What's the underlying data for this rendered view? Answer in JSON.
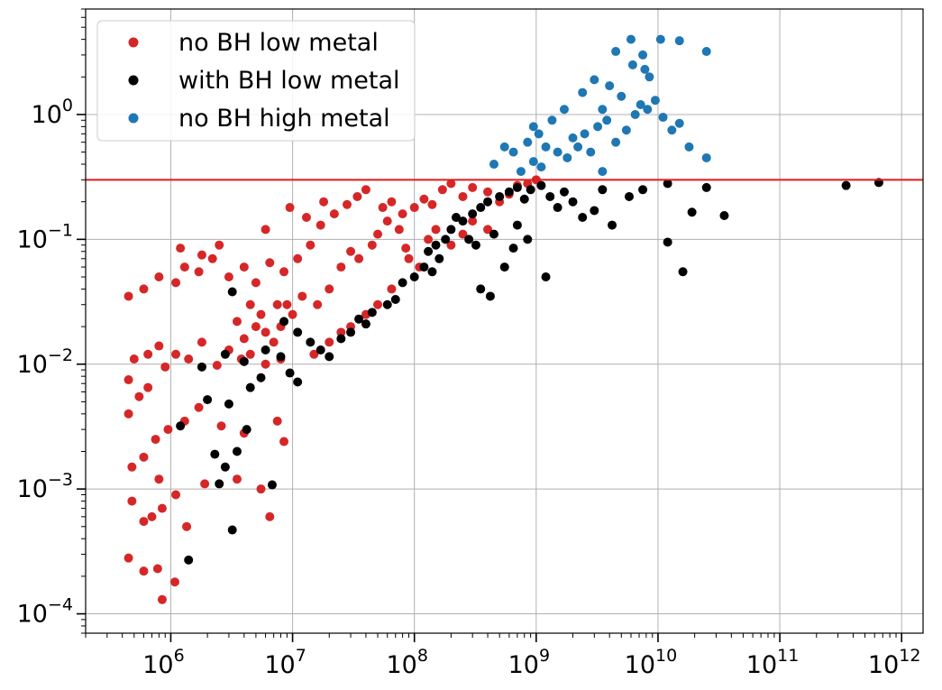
{
  "chart_data": {
    "type": "scatter",
    "title": "",
    "xlabel": "",
    "ylabel": "",
    "xscale": "log",
    "yscale": "log",
    "xlim": [
      200000,
      1500000000000.0
    ],
    "ylim": [
      7e-05,
      7
    ],
    "grid": true,
    "legend_position": "top-left",
    "x_ticks": [
      {
        "value": 1000000.0,
        "base": "10",
        "exp": "6"
      },
      {
        "value": 10000000.0,
        "base": "10",
        "exp": "7"
      },
      {
        "value": 100000000.0,
        "base": "10",
        "exp": "8"
      },
      {
        "value": 1000000000.0,
        "base": "10",
        "exp": "9"
      },
      {
        "value": 10000000000.0,
        "base": "10",
        "exp": "10"
      },
      {
        "value": 100000000000.0,
        "base": "10",
        "exp": "11"
      },
      {
        "value": 1000000000000.0,
        "base": "10",
        "exp": "12"
      }
    ],
    "y_ticks": [
      {
        "value": 0.0001,
        "base": "10",
        "exp": "−4"
      },
      {
        "value": 0.001,
        "base": "10",
        "exp": "−3"
      },
      {
        "value": 0.01,
        "base": "10",
        "exp": "−2"
      },
      {
        "value": 0.1,
        "base": "10",
        "exp": "−1"
      },
      {
        "value": 1,
        "base": "10",
        "exp": "0"
      }
    ],
    "reference_lines": [
      {
        "orientation": "horizontal",
        "y": 0.3,
        "color": "#e31a1c"
      }
    ],
    "series": [
      {
        "name": "no BH low metal",
        "color": "#d62728",
        "points": [
          [
            0.00085,
            0.00013
          ],
          [
            0.00045,
            0.00028
          ],
          [
            0.0006,
            0.00022
          ],
          [
            0.00078,
            0.00023
          ],
          [
            0.00108,
            0.00018
          ],
          [
            0.00048,
            0.0008
          ],
          [
            0.0006,
            0.00055
          ],
          [
            0.0007,
            0.0006
          ],
          [
            0.00085,
            0.0007
          ],
          [
            0.00135,
            0.0005
          ],
          [
            0.0065,
            0.0006
          ],
          [
            0.00048,
            0.0015
          ],
          [
            0.0006,
            0.0018
          ],
          [
            0.0008,
            0.0012
          ],
          [
            0.0011,
            0.0009
          ],
          [
            0.0019,
            0.0011
          ],
          [
            0.0035,
            0.0012
          ],
          [
            0.0055,
            0.001
          ],
          [
            0.00045,
            0.004
          ],
          [
            0.00055,
            0.0055
          ],
          [
            0.00065,
            0.0065
          ],
          [
            0.00075,
            0.0025
          ],
          [
            0.00095,
            0.003
          ],
          [
            0.0013,
            0.0035
          ],
          [
            0.0017,
            0.0045
          ],
          [
            0.0026,
            0.0032
          ],
          [
            0.004,
            0.0028
          ],
          [
            0.0075,
            0.0035
          ],
          [
            0.0085,
            0.0024
          ],
          [
            0.00045,
            0.0075
          ],
          [
            0.0005,
            0.011
          ],
          [
            0.00065,
            0.012
          ],
          [
            0.0008,
            0.014
          ],
          [
            0.0009,
            0.0095
          ],
          [
            0.0011,
            0.012
          ],
          [
            0.0014,
            0.011
          ],
          [
            0.0018,
            0.015
          ],
          [
            0.0024,
            0.0098
          ],
          [
            0.003,
            0.013
          ],
          [
            0.0038,
            0.011
          ],
          [
            0.0045,
            0.012
          ],
          [
            0.006,
            0.01
          ],
          [
            0.008,
            0.011
          ],
          [
            0.00045,
            0.035
          ],
          [
            0.0006,
            0.04
          ],
          [
            0.0008,
            0.05
          ],
          [
            0.0011,
            0.045
          ],
          [
            0.0013,
            0.06
          ],
          [
            0.0017,
            0.055
          ],
          [
            0.0022,
            0.07
          ],
          [
            0.003,
            0.05
          ],
          [
            0.004,
            0.06
          ],
          [
            0.005,
            0.045
          ],
          [
            0.0065,
            0.065
          ],
          [
            0.0085,
            0.055
          ],
          [
            0.011,
            0.07
          ],
          [
            0.014,
            0.09
          ],
          [
            0.0012,
            0.085
          ],
          [
            0.0018,
            0.075
          ],
          [
            0.0025,
            0.09
          ],
          [
            0.006,
            0.12
          ],
          [
            0.0095,
            0.18
          ],
          [
            0.013,
            0.15
          ],
          [
            0.017,
            0.13
          ],
          [
            0.0045,
            0.03
          ],
          [
            0.0055,
            0.025
          ],
          [
            0.0075,
            0.03
          ],
          [
            0.01,
            0.025
          ],
          [
            0.012,
            0.035
          ],
          [
            0.016,
            0.03
          ],
          [
            0.02,
            0.04
          ],
          [
            0.025,
            0.06
          ],
          [
            0.03,
            0.08
          ],
          [
            0.035,
            0.07
          ],
          [
            0.045,
            0.09
          ],
          [
            0.05,
            0.11
          ],
          [
            0.06,
            0.14
          ],
          [
            0.075,
            0.12
          ],
          [
            0.018,
            0.2
          ],
          [
            0.022,
            0.16
          ],
          [
            0.028,
            0.19
          ],
          [
            0.034,
            0.22
          ],
          [
            0.04,
            0.25
          ],
          [
            0.055,
            0.18
          ],
          [
            0.065,
            0.2
          ],
          [
            0.08,
            0.16
          ],
          [
            0.1,
            0.18
          ],
          [
            0.12,
            0.21
          ],
          [
            0.14,
            0.19
          ],
          [
            0.17,
            0.25
          ],
          [
            0.2,
            0.28
          ],
          [
            0.25,
            0.22
          ],
          [
            0.3,
            0.26
          ],
          [
            0.4,
            0.24
          ],
          [
            0.5,
            0.2
          ],
          [
            0.6,
            0.23
          ],
          [
            0.7,
            0.27
          ],
          [
            0.85,
            0.28
          ],
          [
            1.0,
            0.3
          ],
          [
            0.13,
            0.1
          ],
          [
            0.15,
            0.12
          ],
          [
            0.2,
            0.09
          ],
          [
            0.25,
            0.11
          ],
          [
            0.3,
            0.14
          ],
          [
            0.4,
            0.12
          ],
          [
            0.09,
            0.07
          ],
          [
            0.11,
            0.06
          ],
          [
            0.085,
            0.085
          ],
          [
            0.015,
            0.012
          ],
          [
            0.02,
            0.015
          ],
          [
            0.025,
            0.018
          ],
          [
            0.03,
            0.02
          ],
          [
            0.04,
            0.025
          ],
          [
            0.05,
            0.03
          ],
          [
            0.065,
            0.04
          ],
          [
            0.008,
            0.02
          ],
          [
            0.009,
            0.03
          ],
          [
            0.007,
            0.015
          ],
          [
            0.006,
            0.018
          ],
          [
            0.005,
            0.02
          ],
          [
            0.004,
            0.016
          ],
          [
            0.0035,
            0.022
          ]
        ]
      },
      {
        "name": "with BH low metal",
        "color": "#000000",
        "points": [
          [
            0.0014,
            0.00027
          ],
          [
            0.0032,
            0.00047
          ],
          [
            0.0068,
            0.00108
          ],
          [
            0.0012,
            0.0032
          ],
          [
            0.0023,
            0.0019
          ],
          [
            0.0025,
            0.0011
          ],
          [
            0.0028,
            0.0015
          ],
          [
            0.0035,
            0.002
          ],
          [
            0.0042,
            0.003
          ],
          [
            0.002,
            0.0052
          ],
          [
            0.003,
            0.0048
          ],
          [
            0.0045,
            0.0065
          ],
          [
            0.0055,
            0.0078
          ],
          [
            0.0095,
            0.0085
          ],
          [
            0.0018,
            0.0095
          ],
          [
            0.0028,
            0.012
          ],
          [
            0.004,
            0.0105
          ],
          [
            0.006,
            0.013
          ],
          [
            0.008,
            0.0115
          ],
          [
            0.011,
            0.0072
          ],
          [
            0.0032,
            0.038
          ],
          [
            0.0085,
            0.022
          ],
          [
            0.011,
            0.018
          ],
          [
            0.014,
            0.015
          ],
          [
            0.017,
            0.013
          ],
          [
            0.02,
            0.0115
          ],
          [
            0.025,
            0.016
          ],
          [
            0.03,
            0.018
          ],
          [
            0.035,
            0.023
          ],
          [
            0.04,
            0.021
          ],
          [
            0.045,
            0.026
          ],
          [
            0.06,
            0.03
          ],
          [
            0.07,
            0.033
          ],
          [
            0.08,
            0.045
          ],
          [
            0.1,
            0.05
          ],
          [
            0.12,
            0.06
          ],
          [
            0.13,
            0.08
          ],
          [
            0.15,
            0.09
          ],
          [
            0.18,
            0.1
          ],
          [
            0.2,
            0.12
          ],
          [
            0.25,
            0.14
          ],
          [
            0.3,
            0.16
          ],
          [
            0.35,
            0.18
          ],
          [
            0.4,
            0.2
          ],
          [
            0.5,
            0.22
          ],
          [
            0.6,
            0.24
          ],
          [
            0.7,
            0.26
          ],
          [
            0.8,
            0.21
          ],
          [
            0.9,
            0.25
          ],
          [
            1.1,
            0.27
          ],
          [
            1.3,
            0.22
          ],
          [
            1.5,
            0.18
          ],
          [
            1.7,
            0.24
          ],
          [
            2.0,
            0.2
          ],
          [
            2.4,
            0.15
          ],
          [
            3.0,
            0.17
          ],
          [
            3.5,
            0.25
          ],
          [
            4.2,
            0.13
          ],
          [
            5.8,
            0.22
          ],
          [
            7.5,
            0.25
          ],
          [
            12,
            0.28
          ],
          [
            16,
            0.055
          ],
          [
            19,
            0.165
          ],
          [
            25,
            0.26
          ],
          [
            35,
            0.155
          ],
          [
            12,
            0.095
          ],
          [
            350.0,
            0.27
          ],
          [
            650.0,
            0.285
          ],
          [
            0.7,
            0.13
          ],
          [
            0.85,
            0.1
          ],
          [
            1.2,
            0.05
          ],
          [
            0.65,
            0.085
          ],
          [
            0.55,
            0.06
          ],
          [
            0.42,
            0.035
          ],
          [
            0.35,
            0.04
          ],
          [
            0.22,
            0.15
          ],
          [
            0.28,
            0.1
          ],
          [
            0.32,
            0.09
          ],
          [
            0.45,
            0.11
          ],
          [
            0.16,
            0.07
          ],
          [
            0.14,
            0.055
          ]
        ]
      },
      {
        "name": "no BH high metal",
        "color": "#1f77b4",
        "points": [
          [
            0.45,
            0.4
          ],
          [
            0.75,
            0.35
          ],
          [
            0.95,
            0.42
          ],
          [
            1.1,
            0.38
          ],
          [
            1.5,
            0.5
          ],
          [
            1.8,
            0.45
          ],
          [
            2.2,
            0.55
          ],
          [
            2.5,
            0.7
          ],
          [
            3.2,
            0.8
          ],
          [
            3.8,
            0.9
          ],
          [
            4.5,
            0.6
          ],
          [
            5.5,
            0.75
          ],
          [
            6.5,
            1.0
          ],
          [
            7.2,
            1.2
          ],
          [
            8.2,
            1.1
          ],
          [
            9.5,
            1.3
          ],
          [
            11,
            0.95
          ],
          [
            13,
            0.75
          ],
          [
            15,
            0.85
          ],
          [
            18,
            0.55
          ],
          [
            25,
            0.45
          ],
          [
            25,
            3.2
          ],
          [
            4.5,
            3.2
          ],
          [
            6,
            4.0
          ],
          [
            7.5,
            3.0
          ],
          [
            10.5,
            4.0
          ],
          [
            15,
            3.9
          ],
          [
            6.2,
            2.5
          ],
          [
            7.8,
            2.3
          ],
          [
            8.5,
            2.0
          ],
          [
            0.65,
            0.5
          ],
          [
            0.85,
            0.6
          ],
          [
            1.05,
            0.7
          ],
          [
            1.35,
            0.9
          ],
          [
            1.7,
            1.1
          ],
          [
            2.0,
            0.65
          ],
          [
            2.8,
            0.5
          ],
          [
            3.5,
            0.35
          ],
          [
            0.55,
            0.55
          ],
          [
            0.95,
            0.8
          ],
          [
            1.2,
            0.55
          ],
          [
            2.4,
            1.5
          ],
          [
            3.0,
            1.9
          ],
          [
            4.0,
            1.7
          ],
          [
            5.0,
            1.4
          ],
          [
            3.5,
            1.1
          ]
        ]
      }
    ]
  }
}
